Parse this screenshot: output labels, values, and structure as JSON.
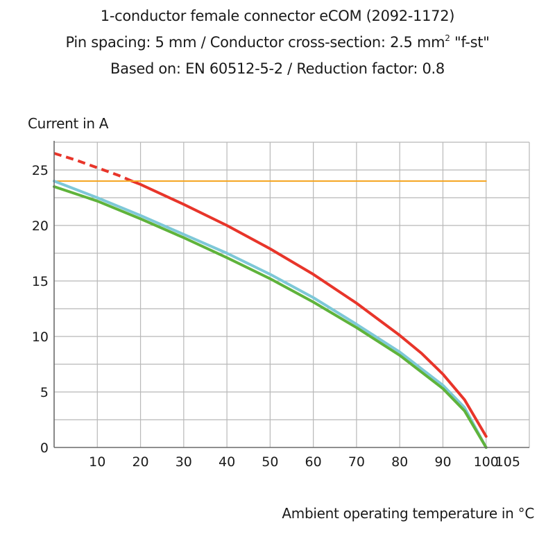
{
  "chart_data": {
    "type": "line",
    "title_lines": [
      "1-conductor female connector eCOM (2092-1172)",
      "Pin spacing: 5 mm / Conductor cross-section: 2.5 mm",
      "Based on: EN 60512-5-2 / Reduction factor: 0.8"
    ],
    "title_sup": "2",
    "title_suffix": " \"f-st\"",
    "ylabel": "Current in A",
    "xlabel": "Ambient operating temperature in °C",
    "xlim": [
      0,
      110
    ],
    "ylim": [
      0,
      27.5
    ],
    "x_ticks": [
      10,
      20,
      30,
      40,
      50,
      60,
      70,
      80,
      90,
      100,
      105
    ],
    "y_ticks": [
      0,
      5,
      10,
      15,
      20,
      25
    ],
    "x_gridlines": [
      10,
      20,
      30,
      40,
      50,
      60,
      70,
      80,
      90,
      100,
      110
    ],
    "y_gridlines": [
      2.5,
      5,
      7.5,
      10,
      12.5,
      15,
      17.5,
      20,
      22.5,
      25,
      27.5
    ],
    "grid": true,
    "series": [
      {
        "color": "#e8352a",
        "dashed_segment": {
          "x": [
            0,
            5,
            10,
            15,
            18
          ],
          "y": [
            26.5,
            25.9,
            25.2,
            24.5,
            24.0
          ]
        },
        "x": [
          18,
          20,
          30,
          40,
          50,
          60,
          70,
          80,
          85,
          90,
          95,
          100
        ],
        "y": [
          24.0,
          23.7,
          21.9,
          20.0,
          17.9,
          15.6,
          13.0,
          10.1,
          8.5,
          6.6,
          4.3,
          1.0
        ]
      },
      {
        "color": "#f5a623",
        "x": [
          0,
          100
        ],
        "y": [
          24.0,
          24.0
        ]
      },
      {
        "color": "#7ec8d8",
        "x": [
          0,
          10,
          20,
          30,
          40,
          50,
          60,
          70,
          80,
          90,
          95,
          100
        ],
        "y": [
          24.0,
          22.5,
          20.9,
          19.2,
          17.5,
          15.6,
          13.5,
          11.1,
          8.6,
          5.6,
          3.6,
          0
        ]
      },
      {
        "color": "#5fb33b",
        "x": [
          0,
          10,
          20,
          30,
          40,
          50,
          60,
          70,
          80,
          90,
          95,
          100
        ],
        "y": [
          23.5,
          22.2,
          20.6,
          18.9,
          17.1,
          15.2,
          13.1,
          10.8,
          8.3,
          5.3,
          3.3,
          0
        ]
      }
    ]
  }
}
